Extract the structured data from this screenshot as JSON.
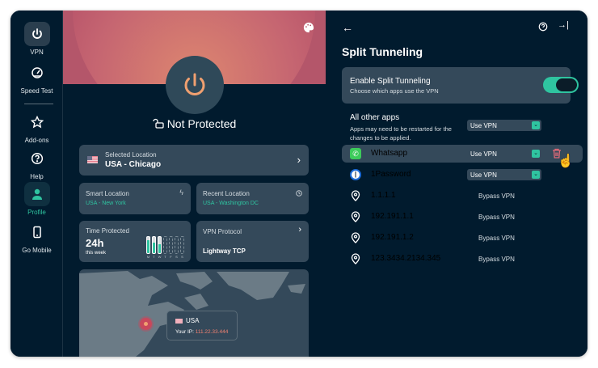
{
  "sidebar": {
    "items": [
      {
        "label": "VPN",
        "icon": "power-icon"
      },
      {
        "label": "Speed Test",
        "icon": "speedometer-icon"
      },
      {
        "label": "Add-ons",
        "icon": "star-icon"
      },
      {
        "label": "Help",
        "icon": "help-icon"
      },
      {
        "label": "Profile",
        "icon": "user-icon"
      },
      {
        "label": "Go Mobile",
        "icon": "phone-icon"
      }
    ]
  },
  "home": {
    "status": "Not Protected",
    "selected_location": {
      "label": "Selected Location",
      "value": "USA - Chicago"
    },
    "smart_location": {
      "label": "Smart Location",
      "value": "USA - New York"
    },
    "recent_location": {
      "label": "Recent Location",
      "value": "USA - Washington DC"
    },
    "time_protected": {
      "label": "Time Protected",
      "value": "24h",
      "sub": "this week",
      "days": [
        "M",
        "T",
        "W",
        "T",
        "F",
        "S",
        "S"
      ],
      "fill": [
        0.8,
        0.65,
        0.55,
        0,
        0,
        0,
        0
      ]
    },
    "protocol": {
      "label": "VPN Protocol",
      "value": "Lightway TCP"
    },
    "map_popup": {
      "country": "USA",
      "ip_label": "Your IP:",
      "ip": "111.22.33.444"
    }
  },
  "split": {
    "title": "Split Tunneling",
    "enable": {
      "label": "Enable Split Tunneling",
      "sub": "Choose which apps use the VPN",
      "on": true
    },
    "all_other": {
      "label": "All other apps",
      "sub": "Apps may need to be restarted for the changes to be applied.",
      "value": "Use VPN"
    },
    "rows": [
      {
        "name": "Whatsapp",
        "mode": "Use VPN",
        "type": "select"
      },
      {
        "name": "1Password",
        "mode": "Use VPN",
        "type": "select"
      },
      {
        "name": "1.1.1.1",
        "mode": "Bypass VPN",
        "type": "text"
      },
      {
        "name": "192.191.1.1",
        "mode": "Bypass VPN",
        "type": "text"
      },
      {
        "name": "192.191.1.2",
        "mode": "Bypass VPN",
        "type": "text"
      },
      {
        "name": "123.3434.2134.345",
        "mode": "Bypass VPN",
        "type": "text"
      }
    ]
  },
  "colors": {
    "accent": "#2fc4a0",
    "danger": "#e06a78",
    "card": "#34495a",
    "bg": "#011b2e",
    "power": "#f0a070"
  }
}
